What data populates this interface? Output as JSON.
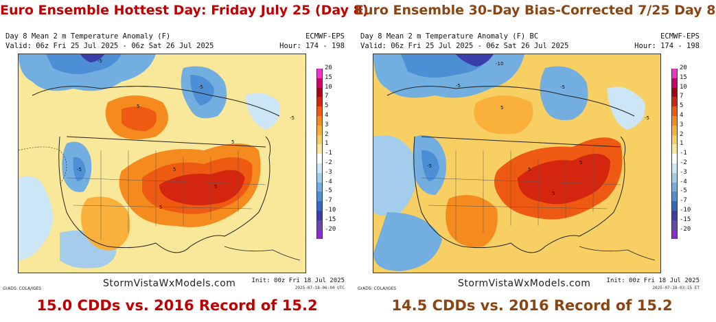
{
  "panels": [
    {
      "headline": "Euro Ensemble Hottest Day: Friday July 25 (Day 8)",
      "headline_color": "#c00000",
      "title_line1": "Day 8 Mean 2 m Temperature Anomaly (F)",
      "title_line2": "Valid: 06z Fri 25 Jul 2025 - 06z Sat 26 Jul 2025",
      "model": "ECMWF-EPS",
      "hours": "Hour: 174 - 198",
      "branding": "StormVistaWxModels.com",
      "grads_note": "GrADS: COLA/IGES",
      "init": "Init: 00z Fri 18 Jul 2025",
      "timestamp": "2025-07-18-06:04 UTC",
      "footer": "15.0 CDDs vs. 2016 Record of 15.2",
      "footer_color": "#c00000",
      "contour_labels": [
        "-5",
        "-5",
        "-5",
        "5",
        "5",
        "5",
        "5",
        "5",
        "-5"
      ]
    },
    {
      "headline": "Euro Ensemble 30-Day Bias-Corrected 7/25 Day 8",
      "headline_color": "#8b4513",
      "title_line1": "Day 8 Mean 2 m Temperature Anomaly (F) BC",
      "title_line2": "Valid: 06z Fri 25 Jul 2025 - 06z Sat 26 Jul 2025",
      "model": "ECMWF-EPS",
      "hours": "Hour: 174 - 198",
      "branding": "StormVistaWxModels.com",
      "grads_note": "GrADS: COLA/IGES",
      "init": "Init: 00z Fri 18 Jul 2025",
      "timestamp": "2025-07-18-03:15 ET",
      "footer": "14.5 CDDs vs. 2016 Record of 15.2",
      "footer_color": "#8b4513",
      "contour_labels": [
        "-10",
        "-5",
        "-5",
        "-5",
        "5",
        "5",
        "5",
        "5",
        "-5"
      ]
    }
  ],
  "legend": {
    "levels": [
      "20",
      "15",
      "10",
      "7",
      "5",
      "4",
      "3",
      "2",
      "1",
      "-1",
      "-2",
      "-3",
      "-4",
      "-5",
      "-7",
      "-10",
      "-15",
      "-20"
    ],
    "colors": [
      "#f032c8",
      "#d0006a",
      "#a80018",
      "#d4260e",
      "#ef5a12",
      "#f58a1e",
      "#f9b13c",
      "#f7cf62",
      "#fae89a",
      "#ffffff",
      "#cde6f5",
      "#a3cdea",
      "#73aee0",
      "#4d8fd4",
      "#3567c4",
      "#3a3eaa",
      "#6a47ad",
      "#8a2bd6"
    ]
  }
}
